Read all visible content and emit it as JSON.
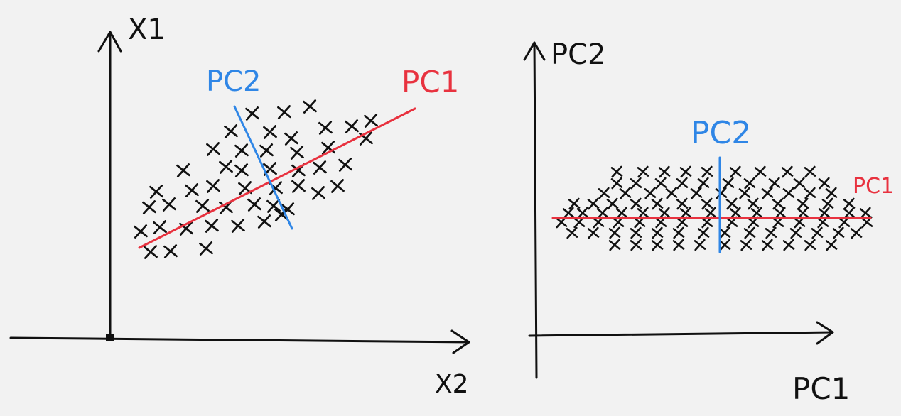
{
  "colors": {
    "ink": "#111111",
    "pc1": "#e8323f",
    "pc2": "#2f86e6",
    "background": "#f2f2f2"
  },
  "left_panel": {
    "y_axis_label": "X1",
    "x_axis_label": "X2",
    "pc1_label": "PC1",
    "pc2_label": "PC2"
  },
  "right_panel": {
    "y_axis_label": "PC2",
    "x_axis_label": "PC1",
    "pc1_label": "PC1",
    "pc2_label": "PC2"
  }
}
